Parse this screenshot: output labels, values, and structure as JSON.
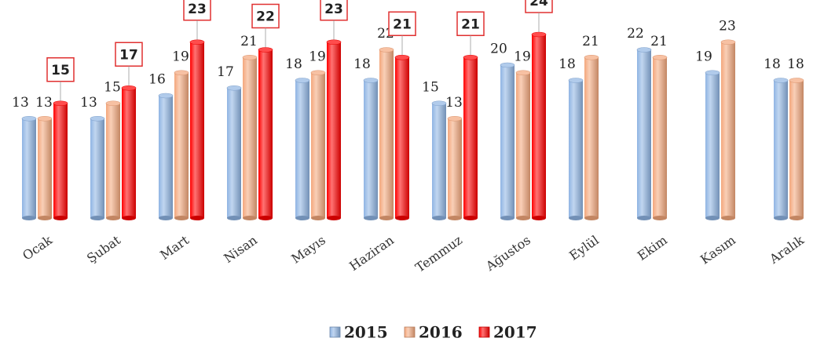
{
  "chart_data": {
    "type": "bar",
    "categories": [
      "Ocak",
      "Şubat",
      "Mart",
      "Nisan",
      "Mayıs",
      "Haziran",
      "Temmuz",
      "Ağustos",
      "Eylül",
      "Ekim",
      "Kasım",
      "Aralık"
    ],
    "series": [
      {
        "name": "2015",
        "color": "#8fb4e3",
        "values": [
          13,
          13,
          16,
          17,
          18,
          18,
          15,
          20,
          18,
          22,
          19,
          18
        ]
      },
      {
        "name": "2016",
        "color": "#f4a77c",
        "values": [
          13,
          15,
          19,
          21,
          19,
          22,
          13,
          19,
          21,
          21,
          23,
          18
        ]
      },
      {
        "name": "2017",
        "color": "#ff0000",
        "values": [
          15,
          17,
          23,
          22,
          23,
          21,
          21,
          24,
          null,
          null,
          null,
          null
        ]
      }
    ],
    "legend": "bottom"
  }
}
